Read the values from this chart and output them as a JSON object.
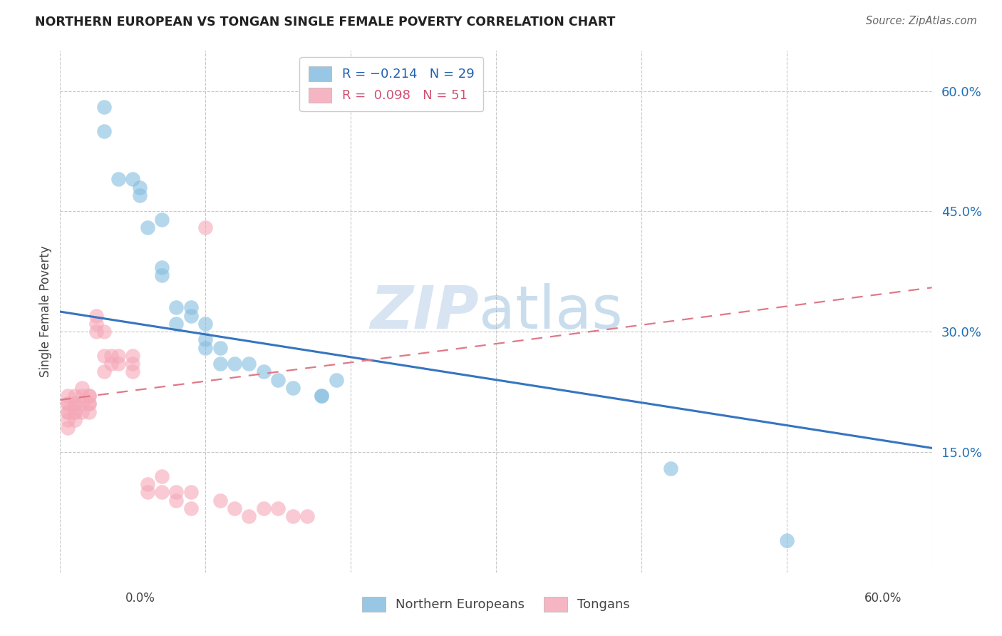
{
  "title": "NORTHERN EUROPEAN VS TONGAN SINGLE FEMALE POVERTY CORRELATION CHART",
  "source": "Source: ZipAtlas.com",
  "ylabel": "Single Female Poverty",
  "watermark": "ZIPatlas",
  "xlim": [
    0.0,
    0.6
  ],
  "ylim": [
    0.0,
    0.65
  ],
  "yticks": [
    0.15,
    0.3,
    0.45,
    0.6
  ],
  "ytick_labels": [
    "15.0%",
    "30.0%",
    "45.0%",
    "60.0%"
  ],
  "ne_color": "#85bde0",
  "to_color": "#f5a8b8",
  "ne_line_color": "#3575c0",
  "to_line_color": "#e07888",
  "background": "#ffffff",
  "ne_line_x0": 0.0,
  "ne_line_y0": 0.325,
  "ne_line_x1": 0.6,
  "ne_line_y1": 0.155,
  "to_line_x0": 0.0,
  "to_line_y0": 0.215,
  "to_line_x1": 0.6,
  "to_line_y1": 0.355,
  "ne_points_x": [
    0.03,
    0.03,
    0.04,
    0.05,
    0.055,
    0.055,
    0.06,
    0.07,
    0.07,
    0.07,
    0.08,
    0.08,
    0.09,
    0.09,
    0.1,
    0.1,
    0.1,
    0.11,
    0.11,
    0.12,
    0.13,
    0.14,
    0.15,
    0.16,
    0.18,
    0.18,
    0.19,
    0.42,
    0.5
  ],
  "ne_points_y": [
    0.58,
    0.55,
    0.49,
    0.49,
    0.47,
    0.48,
    0.43,
    0.37,
    0.38,
    0.44,
    0.31,
    0.33,
    0.33,
    0.32,
    0.29,
    0.31,
    0.28,
    0.26,
    0.28,
    0.26,
    0.26,
    0.25,
    0.24,
    0.23,
    0.22,
    0.22,
    0.24,
    0.13,
    0.04
  ],
  "to_points_x": [
    0.005,
    0.005,
    0.005,
    0.005,
    0.005,
    0.005,
    0.005,
    0.01,
    0.01,
    0.01,
    0.01,
    0.01,
    0.01,
    0.015,
    0.015,
    0.015,
    0.015,
    0.02,
    0.02,
    0.02,
    0.02,
    0.02,
    0.025,
    0.025,
    0.025,
    0.03,
    0.03,
    0.03,
    0.035,
    0.035,
    0.04,
    0.04,
    0.05,
    0.05,
    0.05,
    0.06,
    0.06,
    0.07,
    0.07,
    0.08,
    0.08,
    0.09,
    0.09,
    0.1,
    0.11,
    0.12,
    0.13,
    0.14,
    0.15,
    0.16,
    0.17
  ],
  "to_points_y": [
    0.22,
    0.21,
    0.2,
    0.21,
    0.2,
    0.19,
    0.18,
    0.21,
    0.21,
    0.2,
    0.2,
    0.19,
    0.22,
    0.22,
    0.23,
    0.21,
    0.2,
    0.21,
    0.22,
    0.2,
    0.21,
    0.22,
    0.3,
    0.31,
    0.32,
    0.3,
    0.27,
    0.25,
    0.26,
    0.27,
    0.26,
    0.27,
    0.26,
    0.25,
    0.27,
    0.1,
    0.11,
    0.1,
    0.12,
    0.1,
    0.09,
    0.1,
    0.08,
    0.43,
    0.09,
    0.08,
    0.07,
    0.08,
    0.08,
    0.07,
    0.07
  ]
}
